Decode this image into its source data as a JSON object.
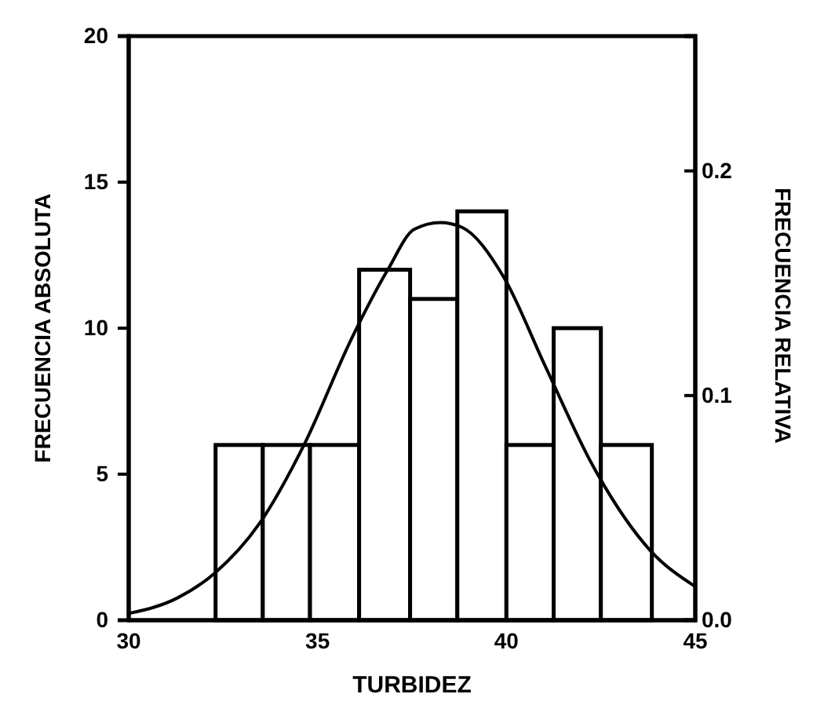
{
  "chart_data": {
    "type": "histogram",
    "xlabel": "TURBIDEZ",
    "ylabel": "FRECUENCIA ABSOLUTA",
    "y2label": "FRECUENCIA RELATIVA",
    "bins": [
      32.3,
      33.55,
      34.8,
      36.1,
      37.45,
      38.7,
      40,
      41.25,
      42.5,
      43.85
    ],
    "series": [
      {
        "color": "#ffffff",
        "values": [
          6,
          6,
          6,
          12,
          11,
          14,
          6,
          10,
          6
        ]
      },
      {
        "type": "line",
        "axis": "y2",
        "color": "#000000",
        "x": [
          30,
          31.3,
          32.28,
          33.46,
          34.64,
          35.89,
          36.86,
          37.56,
          38.25,
          38.81,
          39.92,
          41.03,
          42.28,
          43.81,
          45
        ],
        "values": [
          0.003,
          0.01,
          0.021,
          0.043,
          0.078,
          0.125,
          0.156,
          0.174,
          0.177,
          0.175,
          0.153,
          0.113,
          0.069,
          0.031,
          0.015
        ]
      }
    ],
    "xlim": [
      30,
      45
    ],
    "xticks": [
      30,
      35,
      40,
      45
    ],
    "ylim": [
      0,
      20
    ],
    "yticks": [
      0,
      5,
      10,
      15,
      20
    ],
    "y2lim": [
      0,
      0.26
    ],
    "y2ticks": [
      {
        "value": 0,
        "label": "0.0"
      },
      0.1,
      0.2
    ],
    "grid": false,
    "marker": "none",
    "line_style": "solid"
  }
}
